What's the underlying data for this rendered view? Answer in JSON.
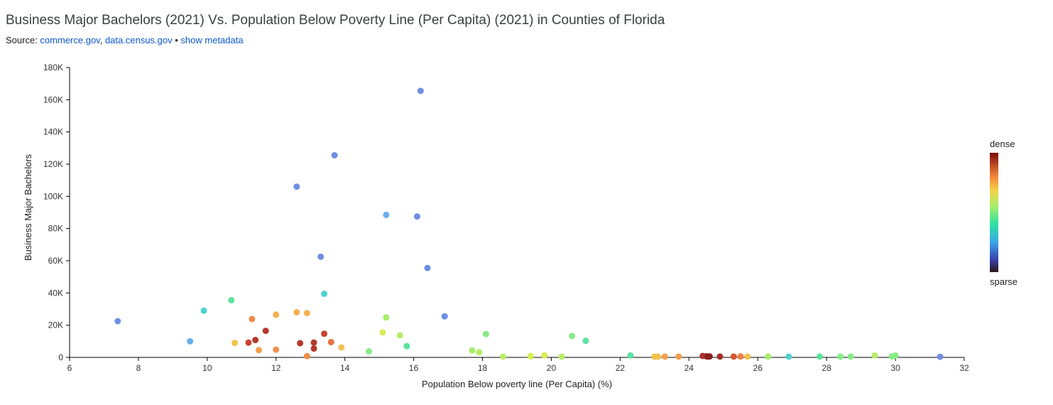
{
  "header": {
    "title": "Business Major Bachelors (2021) Vs. Population Below Poverty Line (Per Capita) (2021) in Counties of Florida",
    "source_prefix": "Source: ",
    "source_link_1": "commerce.gov",
    "source_sep": ", ",
    "source_link_2": "data.census.gov",
    "bullet": " • ",
    "metadata_link": "show metadata"
  },
  "legend": {
    "top_label": "dense",
    "bottom_label": "sparse"
  },
  "chart_data": {
    "type": "scatter",
    "title": "Business Major Bachelors (2021) Vs. Population Below Poverty Line (Per Capita) (2021) in Counties of Florida",
    "xlabel": "Population Below poverty line (Per Capita) (%)",
    "ylabel": "Business Major Bachelors",
    "xlim": [
      6,
      32
    ],
    "ylim": [
      0,
      180000
    ],
    "x_ticks": [
      6,
      8,
      10,
      12,
      14,
      16,
      18,
      20,
      22,
      24,
      26,
      28,
      30,
      32
    ],
    "y_ticks": [
      0,
      20000,
      40000,
      60000,
      80000,
      100000,
      120000,
      140000,
      160000,
      180000
    ],
    "y_tick_labels": [
      "0",
      "20K",
      "40K",
      "60K",
      "80K",
      "100K",
      "120K",
      "140K",
      "160K",
      "180K"
    ],
    "grid": false,
    "color_scale": "density (sparse to dense)",
    "points": [
      {
        "x": 7.4,
        "y": 22500,
        "color": "#6e8fe3"
      },
      {
        "x": 9.5,
        "y": 10000,
        "color": "#6aaeec"
      },
      {
        "x": 9.9,
        "y": 29000,
        "color": "#4dd2cf"
      },
      {
        "x": 10.7,
        "y": 35500,
        "color": "#5be39e"
      },
      {
        "x": 10.8,
        "y": 9000,
        "color": "#f1c24a"
      },
      {
        "x": 11.2,
        "y": 9200,
        "color": "#c4442f"
      },
      {
        "x": 11.3,
        "y": 23800,
        "color": "#ec8a4c"
      },
      {
        "x": 11.4,
        "y": 10800,
        "color": "#b23a2c"
      },
      {
        "x": 11.5,
        "y": 4500,
        "color": "#f1a04a"
      },
      {
        "x": 11.7,
        "y": 16500,
        "color": "#b23a2c"
      },
      {
        "x": 12.0,
        "y": 26500,
        "color": "#f3b151"
      },
      {
        "x": 12.0,
        "y": 4800,
        "color": "#ee9048"
      },
      {
        "x": 12.6,
        "y": 106000,
        "color": "#6e8fe3"
      },
      {
        "x": 12.6,
        "y": 28000,
        "color": "#f3b151"
      },
      {
        "x": 12.7,
        "y": 8800,
        "color": "#b23a2c"
      },
      {
        "x": 12.9,
        "y": 27500,
        "color": "#f3b151"
      },
      {
        "x": 12.9,
        "y": 800,
        "color": "#ee9048"
      },
      {
        "x": 13.1,
        "y": 9200,
        "color": "#b23a2c"
      },
      {
        "x": 13.1,
        "y": 5500,
        "color": "#b23a2c"
      },
      {
        "x": 13.3,
        "y": 62500,
        "color": "#6e8fe3"
      },
      {
        "x": 13.4,
        "y": 39500,
        "color": "#4dd2cf"
      },
      {
        "x": 13.4,
        "y": 14700,
        "color": "#c4442f"
      },
      {
        "x": 13.6,
        "y": 9500,
        "color": "#e9703f"
      },
      {
        "x": 13.7,
        "y": 125500,
        "color": "#6e8fe3"
      },
      {
        "x": 13.9,
        "y": 6200,
        "color": "#f3c154"
      },
      {
        "x": 14.7,
        "y": 3800,
        "color": "#86ec86"
      },
      {
        "x": 15.1,
        "y": 15500,
        "color": "#d8ec55"
      },
      {
        "x": 15.2,
        "y": 88500,
        "color": "#6aaeec"
      },
      {
        "x": 15.2,
        "y": 24800,
        "color": "#a6ee6a"
      },
      {
        "x": 15.6,
        "y": 13700,
        "color": "#b9ec66"
      },
      {
        "x": 15.8,
        "y": 7000,
        "color": "#5be39e"
      },
      {
        "x": 16.1,
        "y": 87500,
        "color": "#6e8fe3"
      },
      {
        "x": 16.2,
        "y": 165500,
        "color": "#6e8fe3"
      },
      {
        "x": 16.4,
        "y": 55500,
        "color": "#6e8fe3"
      },
      {
        "x": 16.9,
        "y": 25500,
        "color": "#6e8fe3"
      },
      {
        "x": 17.7,
        "y": 4300,
        "color": "#a6ee6a"
      },
      {
        "x": 17.9,
        "y": 3200,
        "color": "#b9ec66"
      },
      {
        "x": 18.1,
        "y": 14500,
        "color": "#86ec86"
      },
      {
        "x": 18.6,
        "y": 500,
        "color": "#b9ec66"
      },
      {
        "x": 19.4,
        "y": 900,
        "color": "#d8ec55"
      },
      {
        "x": 19.4,
        "y": 600,
        "color": "#d8ec55"
      },
      {
        "x": 19.8,
        "y": 1300,
        "color": "#d8ec55"
      },
      {
        "x": 20.3,
        "y": 500,
        "color": "#b9ec66"
      },
      {
        "x": 20.6,
        "y": 13300,
        "color": "#86ec86"
      },
      {
        "x": 21.0,
        "y": 10300,
        "color": "#5be39e"
      },
      {
        "x": 22.3,
        "y": 1200,
        "color": "#5be39e"
      },
      {
        "x": 23.0,
        "y": 500,
        "color": "#f1c24a"
      },
      {
        "x": 23.1,
        "y": 500,
        "color": "#f1c24a"
      },
      {
        "x": 23.3,
        "y": 500,
        "color": "#f1a04a"
      },
      {
        "x": 23.7,
        "y": 500,
        "color": "#f1a04a"
      },
      {
        "x": 24.4,
        "y": 900,
        "color": "#a8302a"
      },
      {
        "x": 24.5,
        "y": 700,
        "color": "#a8302a"
      },
      {
        "x": 24.55,
        "y": 500,
        "color": "#8b1f1f"
      },
      {
        "x": 24.6,
        "y": 600,
        "color": "#8b1f1f"
      },
      {
        "x": 24.9,
        "y": 500,
        "color": "#a8302a"
      },
      {
        "x": 25.3,
        "y": 500,
        "color": "#d9582f"
      },
      {
        "x": 25.5,
        "y": 600,
        "color": "#ee7e45"
      },
      {
        "x": 25.7,
        "y": 500,
        "color": "#f1c24a"
      },
      {
        "x": 26.3,
        "y": 500,
        "color": "#a6ee6a"
      },
      {
        "x": 26.9,
        "y": 500,
        "color": "#4dd2cf"
      },
      {
        "x": 27.8,
        "y": 500,
        "color": "#5be39e"
      },
      {
        "x": 28.4,
        "y": 500,
        "color": "#86ec86"
      },
      {
        "x": 28.7,
        "y": 500,
        "color": "#86ec86"
      },
      {
        "x": 29.4,
        "y": 1200,
        "color": "#b9ec66"
      },
      {
        "x": 29.9,
        "y": 600,
        "color": "#86ec86"
      },
      {
        "x": 30.0,
        "y": 1200,
        "color": "#86ec86"
      },
      {
        "x": 31.3,
        "y": 400,
        "color": "#6e8fe3"
      }
    ]
  }
}
